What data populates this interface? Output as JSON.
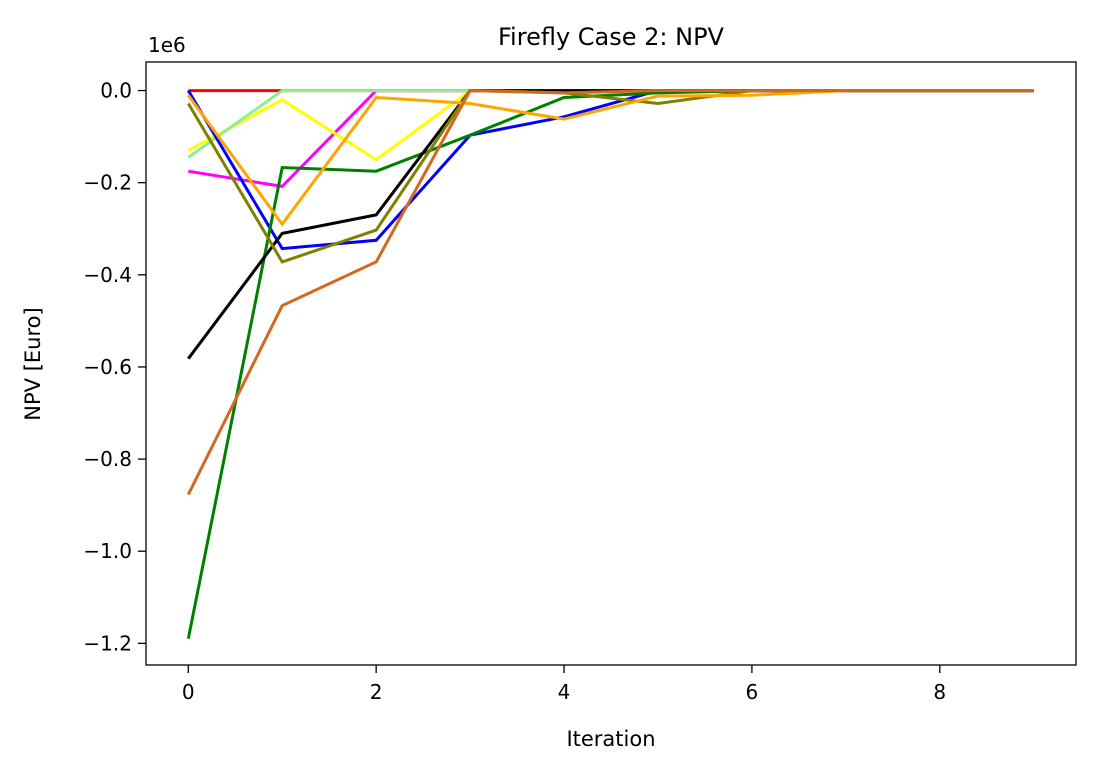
{
  "chart_data": {
    "type": "line",
    "title": "Firefly Case 2: NPV",
    "xlabel": "Iteration",
    "ylabel": "NPV [Euro]",
    "offset_text": "1e6",
    "xlim": [
      -0.45,
      9.45
    ],
    "ylim": [
      -1.247,
      0.062
    ],
    "xticks": [
      0,
      2,
      4,
      6,
      8
    ],
    "xtick_labels": [
      "0",
      "2",
      "4",
      "6",
      "8"
    ],
    "yticks": [
      0.0,
      -0.2,
      -0.4,
      -0.6,
      -0.8,
      -1.0,
      -1.2
    ],
    "ytick_labels": [
      "0.0",
      "−0.2",
      "−0.4",
      "−0.6",
      "−0.8",
      "−1.0",
      "−1.2"
    ],
    "grid": false,
    "legend": "none",
    "x": [
      0,
      1,
      2,
      3,
      4,
      5,
      6,
      7,
      8,
      9
    ],
    "series": [
      {
        "color": "#ff0000",
        "values": [
          0.0,
          0.0,
          0.0,
          0.0,
          0.0,
          0.0,
          0.0,
          0.0,
          0.0,
          0.0
        ]
      },
      {
        "color": "#ff00ff",
        "values": [
          -0.175,
          -0.208,
          0.0,
          0.0,
          0.0,
          0.0,
          0.0,
          0.0,
          0.0,
          0.0
        ]
      },
      {
        "color": "#ffff00",
        "values": [
          -0.13,
          -0.02,
          -0.15,
          0.0,
          0.0,
          0.0,
          0.0,
          0.0,
          0.0,
          0.0
        ]
      },
      {
        "color": "#90ee90",
        "values": [
          -0.145,
          0.0,
          0.0,
          0.0,
          0.0,
          0.0,
          0.0,
          0.0,
          0.0,
          0.0
        ]
      },
      {
        "color": "#0000ff",
        "values": [
          0.0,
          -0.343,
          -0.325,
          -0.097,
          -0.057,
          0.0,
          0.0,
          0.0,
          0.0,
          0.0
        ]
      },
      {
        "color": "#008000",
        "values": [
          -1.19,
          -0.167,
          -0.175,
          -0.097,
          -0.015,
          -0.005,
          0.0,
          0.0,
          0.0,
          0.0
        ]
      },
      {
        "color": "#000000",
        "values": [
          -0.582,
          -0.31,
          -0.27,
          0.0,
          0.0,
          0.0,
          0.0,
          0.0,
          0.0,
          0.0
        ]
      },
      {
        "color": "#808000",
        "values": [
          -0.028,
          -0.372,
          -0.303,
          0.0,
          -0.005,
          -0.028,
          0.0,
          0.0,
          0.0,
          0.0
        ]
      },
      {
        "color": "#ffa500",
        "values": [
          -0.01,
          -0.29,
          -0.015,
          -0.028,
          -0.062,
          -0.012,
          -0.01,
          0.0,
          0.0,
          0.0
        ]
      },
      {
        "color": "#d2691e",
        "values": [
          -0.877,
          -0.467,
          -0.372,
          0.0,
          -0.005,
          0.0,
          0.0,
          0.0,
          0.0,
          0.0
        ]
      }
    ]
  }
}
